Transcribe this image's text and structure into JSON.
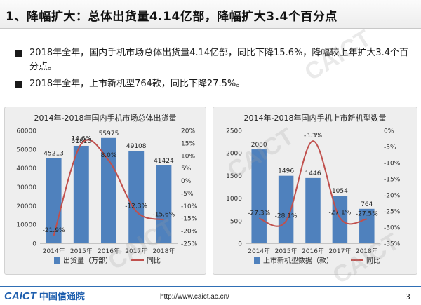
{
  "slide": {
    "title": "1、降幅扩大：总体出货量4.14亿部，降幅扩大3.4个百分点",
    "bullets": [
      "2018年全年，国内手机市场总体出货量4.14亿部，同比下降15.6%，降幅较上年扩大3.4个百分点。",
      "2018年全年，上市新机型764款，同比下降27.5%。"
    ],
    "watermark": "CAICT",
    "footer": {
      "logo_en": "CAICT",
      "logo_cn": "中国信通院",
      "url": "http://www.caict.ac.cn/",
      "page": "3"
    }
  },
  "colors": {
    "bar": "#4f81bd",
    "line": "#c0504d",
    "accent": "#1f5fae"
  },
  "chart_data": [
    {
      "type": "bar",
      "title": "2014年-2018年国内手机市场总体出货量",
      "categories": [
        "2014年",
        "2015年",
        "2016年",
        "2017年",
        "2018年"
      ],
      "series": [
        {
          "name": "出货量（万部）",
          "type": "bar",
          "axis": "left",
          "values": [
            45213,
            51810,
            55975,
            49108,
            41424
          ],
          "labels": [
            "45213",
            "51810",
            "55975",
            "49108",
            "41424"
          ]
        },
        {
          "name": "同比",
          "type": "line",
          "axis": "right",
          "values": [
            -21.9,
            14.6,
            8.0,
            -12.3,
            -15.6
          ],
          "labels": [
            "-21.9%",
            "14.6%",
            "8.0%",
            "-12.3%",
            "-15.6%"
          ]
        }
      ],
      "y_left": {
        "min": 0,
        "max": 60000,
        "ticks": [
          0,
          10000,
          20000,
          30000,
          40000,
          50000,
          60000
        ],
        "tick_labels": [
          "0",
          "10000",
          "20000",
          "30000",
          "40000",
          "50000",
          "60000"
        ]
      },
      "y_right": {
        "min": -25,
        "max": 20,
        "ticks": [
          -25,
          -20,
          -15,
          -10,
          -5,
          0,
          5,
          10,
          15,
          20
        ],
        "tick_labels": [
          "-25%",
          "-20%",
          "-15%",
          "-10%",
          "-5%",
          "0%",
          "5%",
          "10%",
          "15%",
          "20%"
        ]
      },
      "legend": "bottom",
      "grid": false
    },
    {
      "type": "bar",
      "title": "2014年-2018年国内手机上市新机型数量",
      "categories": [
        "2014年",
        "2015年",
        "2016年",
        "2017年",
        "2018年"
      ],
      "series": [
        {
          "name": "上市新机型数据（款）",
          "type": "bar",
          "axis": "left",
          "values": [
            2080,
            1496,
            1446,
            1054,
            764
          ],
          "labels": [
            "2080",
            "1496",
            "1446",
            "1054",
            "764"
          ]
        },
        {
          "name": "同比",
          "type": "line",
          "axis": "right",
          "values": [
            -27.3,
            -28.1,
            -3.3,
            -27.1,
            -27.5
          ],
          "labels": [
            "-27.3%",
            "-28.1%",
            "-3.3%",
            "-27.1%",
            "-27.5%"
          ]
        }
      ],
      "y_left": {
        "min": 0,
        "max": 2500,
        "ticks": [
          0,
          500,
          1000,
          1500,
          2000,
          2500
        ],
        "tick_labels": [
          "0",
          "500",
          "1000",
          "1500",
          "2000",
          "2500"
        ]
      },
      "y_right": {
        "min": -35,
        "max": 0,
        "ticks": [
          -35,
          -30,
          -25,
          -20,
          -15,
          -10,
          -5,
          0
        ],
        "tick_labels": [
          "-35%",
          "-30%",
          "-25%",
          "-20%",
          "-15%",
          "-10%",
          "-5%",
          "0%"
        ]
      },
      "legend": "bottom",
      "grid": false
    }
  ]
}
